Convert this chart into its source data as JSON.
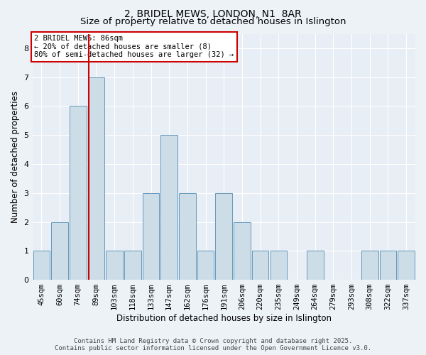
{
  "title_line1": "2, BRIDEL MEWS, LONDON, N1  8AR",
  "title_line2": "Size of property relative to detached houses in Islington",
  "xlabel": "Distribution of detached houses by size in Islington",
  "ylabel": "Number of detached properties",
  "categories": [
    "45sqm",
    "60sqm",
    "74sqm",
    "89sqm",
    "103sqm",
    "118sqm",
    "133sqm",
    "147sqm",
    "162sqm",
    "176sqm",
    "191sqm",
    "206sqm",
    "220sqm",
    "235sqm",
    "249sqm",
    "264sqm",
    "279sqm",
    "293sqm",
    "308sqm",
    "322sqm",
    "337sqm"
  ],
  "values": [
    1,
    2,
    6,
    7,
    1,
    1,
    3,
    5,
    3,
    1,
    3,
    2,
    1,
    1,
    0,
    1,
    0,
    0,
    1,
    1,
    1
  ],
  "bar_color": "#ccdde8",
  "bar_edge_color": "#6699bb",
  "highlight_bar_index": 3,
  "highlight_line_color": "#cc0000",
  "annotation_line1": "2 BRIDEL MEWS: 86sqm",
  "annotation_line2": "← 20% of detached houses are smaller (8)",
  "annotation_line3": "80% of semi-detached houses are larger (32) →",
  "annotation_box_color": "#ffffff",
  "annotation_box_edge_color": "#cc0000",
  "ylim": [
    0,
    8.5
  ],
  "yticks": [
    0,
    1,
    2,
    3,
    4,
    5,
    6,
    7,
    8
  ],
  "footer_line1": "Contains HM Land Registry data © Crown copyright and database right 2025.",
  "footer_line2": "Contains public sector information licensed under the Open Government Licence v3.0.",
  "bg_color": "#edf2f7",
  "plot_bg_color": "#e8eef5",
  "grid_color": "#ffffff",
  "title_fontsize": 10,
  "subtitle_fontsize": 9.5,
  "axis_label_fontsize": 8.5,
  "tick_fontsize": 7.5,
  "footer_fontsize": 6.5
}
